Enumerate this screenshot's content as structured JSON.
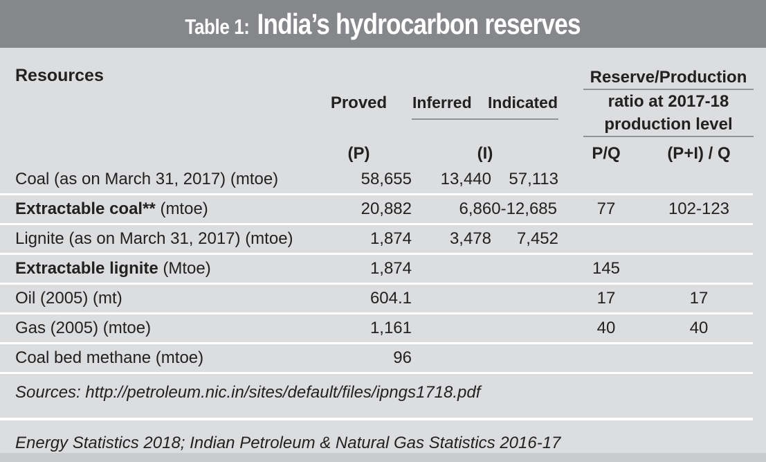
{
  "title": {
    "prefix": "Table 1:",
    "main": "India’s hydrocarbon reserves"
  },
  "colors": {
    "title_bar": "#85878a",
    "body_background": "#dcddde",
    "text": "#232022",
    "row_separator": "#ffffff",
    "header_underline": "#919396"
  },
  "header": {
    "resources": "Resources",
    "proved": "Proved",
    "proved_symbol": "(P)",
    "inferred": "Inferred",
    "indicated": "Indicated",
    "inferred_indicated_symbol": "(I)",
    "ratio_line1": "Reserve/Production",
    "ratio_line2": "ratio at 2017-18",
    "ratio_line3": "production level",
    "pq": "P/Q",
    "p_plus_i_q": "(P+I) / Q"
  },
  "rows": [
    {
      "label_bold": "",
      "label": "Coal (as on March 31, 2017) (mtoe)",
      "proved": "58,655",
      "inferred": "13,440",
      "indicated": "57,113",
      "inferred_indicated_range": "",
      "pq": "",
      "p_plus_i_q": ""
    },
    {
      "label_bold": "Extractable coal**",
      "label": " (mtoe)",
      "proved": "20,882",
      "inferred": "",
      "indicated": "",
      "inferred_indicated_range": "6,860-12,685",
      "pq": "77",
      "p_plus_i_q": "102-123"
    },
    {
      "label_bold": "",
      "label": "Lignite (as on March 31, 2017) (mtoe)",
      "proved": "1,874",
      "inferred": "3,478",
      "indicated": "7,452",
      "inferred_indicated_range": "",
      "pq": "",
      "p_plus_i_q": ""
    },
    {
      "label_bold": "Extractable lignite",
      "label": " (Mtoe)",
      "proved": "1,874",
      "inferred": "",
      "indicated": "",
      "inferred_indicated_range": "",
      "pq": "145",
      "p_plus_i_q": ""
    },
    {
      "label_bold": "",
      "label": "Oil (2005) (mt)",
      "proved": "604.1",
      "inferred": "",
      "indicated": "",
      "inferred_indicated_range": "",
      "pq": "17",
      "p_plus_i_q": "17"
    },
    {
      "label_bold": "",
      "label": "Gas (2005) (mtoe)",
      "proved": "1,161",
      "inferred": "",
      "indicated": "",
      "inferred_indicated_range": "",
      "pq": "40",
      "p_plus_i_q": "40"
    },
    {
      "label_bold": "",
      "label": "Coal bed methane (mtoe)",
      "proved": "96",
      "inferred": "",
      "indicated": "",
      "inferred_indicated_range": "",
      "pq": "",
      "p_plus_i_q": ""
    }
  ],
  "footer": {
    "sources": "Sources: http://petroleum.nic.in/sites/default/files/ipngs1718.pdf",
    "note": "Energy Statistics 2018; Indian Petroleum & Natural Gas Statistics 2016-17"
  },
  "chart_data": {
    "type": "table",
    "title": "Table 1: India’s hydrocarbon reserves",
    "columns": [
      "Resources",
      "Proved (P)",
      "Inferred (I)",
      "Indicated (I)",
      "P/Q at 2017-18 production level",
      "(P+I)/Q at 2017-18 production level"
    ],
    "rows": [
      [
        "Coal (as on March 31, 2017) (mtoe)",
        "58,655",
        "13,440",
        "57,113",
        "",
        ""
      ],
      [
        "Extractable coal** (mtoe)",
        "20,882",
        "6,860-12,685",
        "6,860-12,685",
        "77",
        "102-123"
      ],
      [
        "Lignite (as on March 31, 2017) (mtoe)",
        "1,874",
        "3,478",
        "7,452",
        "",
        ""
      ],
      [
        "Extractable lignite (Mtoe)",
        "1,874",
        "",
        "",
        "145",
        ""
      ],
      [
        "Oil (2005) (mt)",
        "604.1",
        "",
        "",
        "17",
        "17"
      ],
      [
        "Gas (2005) (mtoe)",
        "1,161",
        "",
        "",
        "40",
        "40"
      ],
      [
        "Coal bed methane (mtoe)",
        "96",
        "",
        "",
        "",
        ""
      ]
    ]
  }
}
